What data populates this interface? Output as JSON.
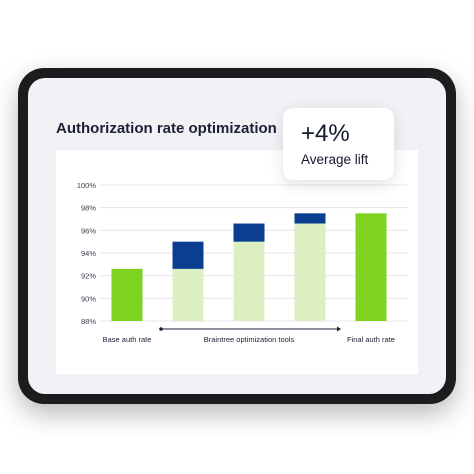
{
  "header": {
    "title": "Authorization rate optimization"
  },
  "callout": {
    "value": "+4%",
    "label": "Average lift"
  },
  "colors": {
    "base_green": "#7ed321",
    "pale_green": "#dcefc0",
    "navy": "#0b3d91",
    "tick_text": "#3a3f4d",
    "grid": "#e7e7ec"
  },
  "chart_data": {
    "type": "bar",
    "title": "Authorization rate optimization",
    "xlabel": "",
    "ylabel": "",
    "ylim": [
      88,
      100
    ],
    "y_ticks": [
      "88%",
      "90%",
      "92%",
      "94%",
      "96%",
      "98%",
      "100%"
    ],
    "y_tick_values": [
      88,
      90,
      92,
      94,
      96,
      98,
      100
    ],
    "grid": true,
    "categories": [
      "Base auth rate",
      "Braintree optimization tools",
      "Braintree optimization tools",
      "Braintree optimization tools",
      "Final auth rate"
    ],
    "bars": [
      {
        "base": 92.6,
        "gain": 0,
        "style": "solid"
      },
      {
        "base": 92.6,
        "gain": 2.4,
        "style": "stacked"
      },
      {
        "base": 95.0,
        "gain": 1.6,
        "style": "stacked"
      },
      {
        "base": 96.6,
        "gain": 0.9,
        "style": "stacked"
      },
      {
        "base": 97.5,
        "gain": 0,
        "style": "solid"
      }
    ],
    "x_labels": [
      "Base auth rate",
      "Braintree optimization tools",
      "Final auth rate"
    ]
  }
}
